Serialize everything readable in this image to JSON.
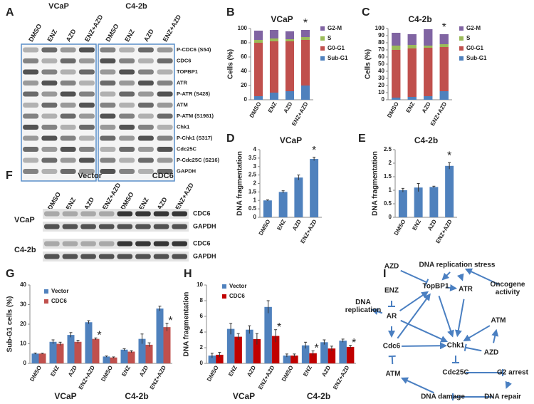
{
  "panel_labels": [
    "A",
    "B",
    "C",
    "D",
    "E",
    "F",
    "G",
    "H",
    "I"
  ],
  "blots": [
    {
      "headers": [
        "VCaP",
        "C4-2b"
      ],
      "lanes": [
        "DMSO",
        "ENZ",
        "AZD",
        "ENZ+AZD",
        "DMSO",
        "ENZ",
        "AZD",
        "ENZ+AZD"
      ],
      "proteins": [
        "P-CDC6 (S54)",
        "CDC6",
        "TOPBP1",
        "ATR",
        "P-ATR (S428)",
        "ATM",
        "P-ATM (S1981)",
        "Chk1",
        "P-Chk1 (S317)",
        "Cdc25C",
        "P-Cdc25C (S216)",
        "GAPDH"
      ]
    },
    {
      "groups": [
        "Vector",
        "CDC6"
      ],
      "lanes": [
        "DMSO",
        "ENZ",
        "AZD",
        "ENZ+AZD",
        "DMSO",
        "ENZ",
        "AZD",
        "ENZ+AZD"
      ],
      "cell_lines": [
        "VCaP",
        "C4-2b"
      ],
      "proteins": [
        "CDC6",
        "GAPDH"
      ]
    }
  ],
  "chart_data": [
    {
      "type": "stacked_bar",
      "title": "VCaP",
      "y_label": "Cells (%)",
      "categories": [
        "DMSO",
        "ENZ",
        "AZD",
        "ENZ+AZD"
      ],
      "series": [
        {
          "name": "Sub-G1",
          "color": "#4f81bd",
          "values": [
            5,
            10,
            12,
            20
          ]
        },
        {
          "name": "G0-G1",
          "color": "#c0504d",
          "values": [
            75,
            72,
            70,
            64
          ]
        },
        {
          "name": "S",
          "color": "#9bbb59",
          "values": [
            4,
            4,
            3,
            4
          ]
        },
        {
          "name": "G2-M",
          "color": "#8064a2",
          "values": [
            13,
            12,
            11,
            10
          ]
        }
      ],
      "ylim": [
        0,
        100
      ],
      "yticks": [
        0,
        20,
        40,
        60,
        80,
        100
      ],
      "annotations": [
        {
          "text": "*",
          "index": 3
        }
      ]
    },
    {
      "type": "stacked_bar",
      "title": "C4-2b",
      "y_label": "Cells (%)",
      "categories": [
        "DMSO",
        "ENZ",
        "AZD",
        "ENZ+AZD"
      ],
      "series": [
        {
          "name": "Sub-G1",
          "color": "#4f81bd",
          "values": [
            3,
            4,
            5,
            12
          ]
        },
        {
          "name": "G0-G1",
          "color": "#c0504d",
          "values": [
            67,
            68,
            68,
            62
          ]
        },
        {
          "name": "S",
          "color": "#9bbb59",
          "values": [
            6,
            5,
            3,
            4
          ]
        },
        {
          "name": "G2-M",
          "color": "#8064a2",
          "values": [
            18,
            15,
            23,
            14
          ]
        }
      ],
      "ylim": [
        0,
        100
      ],
      "yticks": [
        0,
        10,
        20,
        30,
        40,
        50,
        60,
        70,
        80,
        90,
        100
      ],
      "annotations": [
        {
          "text": "*",
          "index": 3
        }
      ]
    },
    {
      "type": "bar",
      "title": "VCaP",
      "y_label": "DNA fragmentation",
      "categories": [
        "DMSO",
        "ENZ",
        "AZD",
        "ENZ+AZD"
      ],
      "values": [
        1.0,
        1.5,
        2.35,
        3.45
      ],
      "errors": [
        0.03,
        0.07,
        0.15,
        0.1
      ],
      "color": "#4f81bd",
      "ylim": [
        0,
        4
      ],
      "yticks": [
        0,
        0.5,
        1,
        1.5,
        2,
        2.5,
        3,
        3.5,
        4
      ],
      "annotations": [
        {
          "text": "*",
          "index": 3
        }
      ]
    },
    {
      "type": "bar",
      "title": "C4-2b",
      "y_label": "DNA fragmentation",
      "categories": [
        "DMSO",
        "ENZ",
        "AZD",
        "ENZ+AZD"
      ],
      "values": [
        1.0,
        1.1,
        1.12,
        1.9
      ],
      "errors": [
        0.07,
        0.15,
        0.03,
        0.12
      ],
      "color": "#4f81bd",
      "ylim": [
        0,
        2.5
      ],
      "yticks": [
        0,
        0.5,
        1,
        1.5,
        2,
        2.5
      ],
      "annotations": [
        {
          "text": "*",
          "index": 3
        }
      ]
    },
    {
      "type": "grouped_bar",
      "y_label": "Sub-G1 cells (%)",
      "categories": [
        "DMSO",
        "ENZ",
        "AZD",
        "ENZ+AZD",
        "DMSO",
        "ENZ",
        "AZD",
        "ENZ+AZD"
      ],
      "groups": [
        "VCaP",
        "C4-2b"
      ],
      "series": [
        {
          "name": "Vector",
          "color": "#4f81bd",
          "values": [
            5,
            11,
            14.5,
            21,
            3.5,
            7,
            12.5,
            28
          ],
          "errors": [
            0.3,
            1,
            1.2,
            0.8,
            0.3,
            0.5,
            2.5,
            1.2
          ]
        },
        {
          "name": "CDC6",
          "color": "#c0504d",
          "values": [
            5,
            10,
            11,
            12.5,
            3,
            6,
            9.5,
            18.5
          ],
          "errors": [
            0.2,
            0.8,
            0.8,
            0.5,
            0.3,
            0.5,
            1,
            2
          ]
        }
      ],
      "ylim": [
        0,
        40
      ],
      "yticks": [
        0,
        10,
        20,
        30,
        40
      ],
      "annotations": [
        {
          "text": "*",
          "series": 1,
          "index": 3
        },
        {
          "text": "*",
          "series": 1,
          "index": 7
        }
      ]
    },
    {
      "type": "grouped_bar",
      "y_label": "DNA fragmentation",
      "categories": [
        "DMSO",
        "ENZ",
        "AZD",
        "ENZ+AZD",
        "DMSO",
        "ENZ",
        "AZD",
        "ENZ+AZD"
      ],
      "groups": [
        "VCaP",
        "C4-2b"
      ],
      "series": [
        {
          "name": "Vector",
          "color": "#4f81bd",
          "values": [
            1.0,
            4.4,
            4.3,
            7.2,
            1.0,
            2.3,
            2.7,
            2.9
          ],
          "errors": [
            0.3,
            0.7,
            0.5,
            0.8,
            0.2,
            0.4,
            0.3,
            0.2
          ]
        },
        {
          "name": "CDC6",
          "color": "#c00000",
          "values": [
            1.1,
            3.4,
            3.1,
            3.5,
            1.0,
            1.3,
            1.9,
            2.1
          ],
          "errors": [
            0.3,
            0.4,
            0.7,
            0.8,
            0.2,
            0.3,
            0.3,
            0.2
          ]
        }
      ],
      "ylim": [
        0,
        10
      ],
      "yticks": [
        0,
        2,
        4,
        6,
        8,
        10
      ],
      "annotations": [
        {
          "text": "*",
          "series": 1,
          "index": 3
        },
        {
          "text": "*",
          "series": 1,
          "index": 5
        },
        {
          "text": "*",
          "series": 1,
          "index": 7
        }
      ]
    }
  ],
  "diagram": {
    "nodes": [
      "AZD",
      "DNA replication stress",
      "Oncogene activity",
      "ENZ",
      "TopBP1",
      "ATR",
      "ATM",
      "DNA replication",
      "AR",
      "AZD",
      "Cdc6",
      "Chk1",
      "ATM",
      "Cdc25C",
      "G2 arrest",
      "DNA damage",
      "DNA repair"
    ]
  }
}
